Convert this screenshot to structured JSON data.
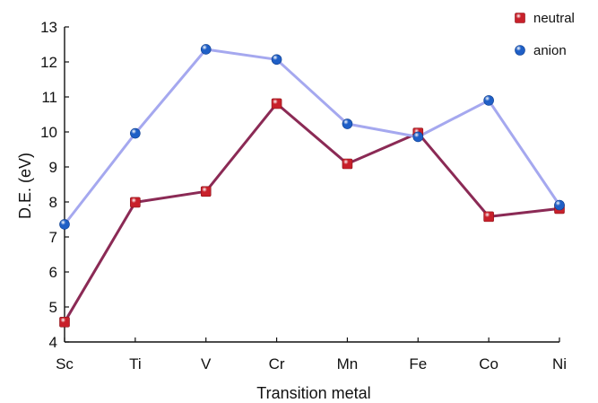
{
  "chart_data": {
    "type": "line",
    "categories": [
      "Sc",
      "Ti",
      "V",
      "Cr",
      "Mn",
      "Fe",
      "Co",
      "Ni"
    ],
    "series": [
      {
        "name": "neutral",
        "values": [
          4.57,
          7.99,
          8.3,
          10.81,
          9.09,
          9.97,
          7.58,
          7.81
        ],
        "line_color": "#8b2a55",
        "marker_color": "#c8202a",
        "marker": "square"
      },
      {
        "name": "anion",
        "values": [
          7.36,
          9.96,
          12.36,
          12.07,
          10.23,
          9.86,
          10.9,
          7.91
        ],
        "line_color": "#a5a8ef",
        "marker_color": "#1f5fc6",
        "marker": "circle"
      }
    ],
    "xlabel": "Transition metal",
    "ylabel": "D.E. (eV)",
    "ylim": [
      4,
      13
    ],
    "yticks": [
      "4",
      "5",
      "6",
      "7",
      "8",
      "9",
      "10",
      "11",
      "12",
      "13"
    ],
    "grid": false,
    "legend_position": "top-right"
  }
}
